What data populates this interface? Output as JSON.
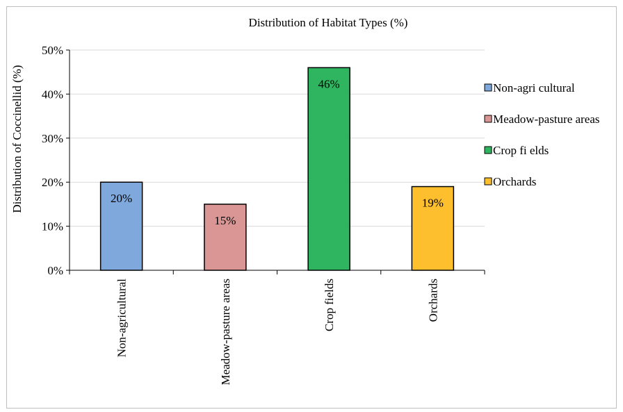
{
  "chart_data": {
    "type": "bar",
    "title": "Distribution  of Habitat Types (%)",
    "xlabel": "",
    "ylabel": "Distribution  of Coccinellid  (%)",
    "categories": [
      "Non-agricultural",
      "Meadow-pasture areas",
      "Crop fields",
      "Orchards"
    ],
    "values": [
      20,
      15,
      46,
      19
    ],
    "data_labels": [
      "20%",
      "15%",
      "46%",
      "19%"
    ],
    "colors": [
      "#7fa8dc",
      "#d99694",
      "#2fb55f",
      "#fdbf2d"
    ],
    "ylim": [
      0,
      50
    ],
    "yticks": [
      0,
      10,
      20,
      30,
      40,
      50
    ],
    "ytick_labels": [
      "0%",
      "10%",
      "20%",
      "30%",
      "40%",
      "50%"
    ],
    "grid": true,
    "legend_position": "right",
    "legend": [
      "Non-agricultural",
      "Meadow-pasture areas",
      "Crop fields",
      "Orchards"
    ],
    "legend_labels": [
      "Non-agri cultural",
      "Meadow-pasture areas",
      "Crop fi elds",
      "Orchards"
    ]
  }
}
